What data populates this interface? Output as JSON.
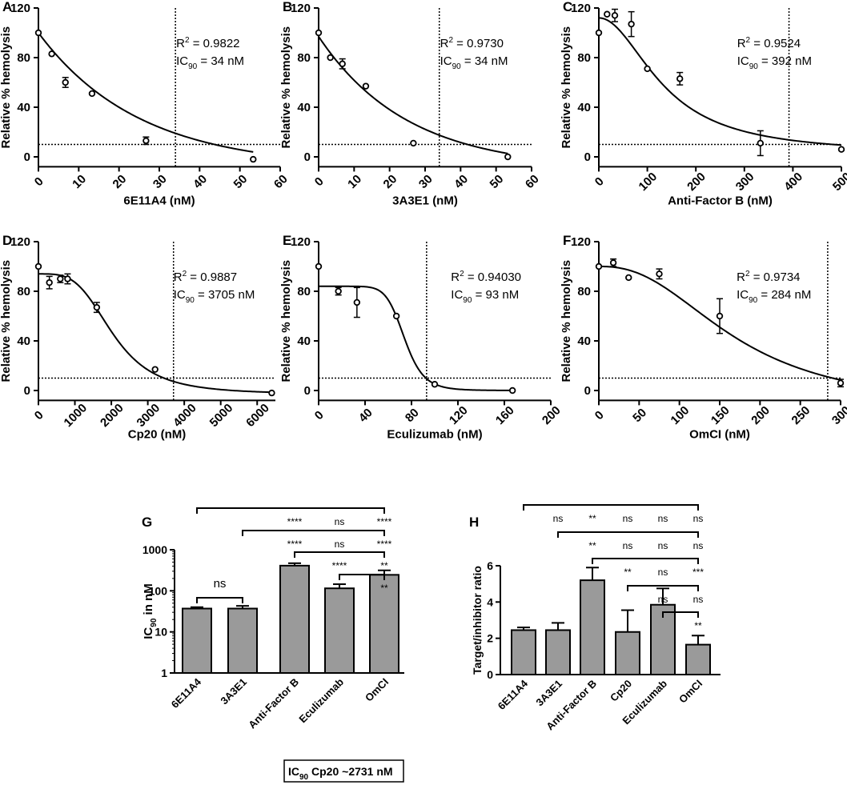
{
  "chart_data": [
    {
      "type": "scatter",
      "panel": "A",
      "title": "",
      "xlabel": "6E11A4 (nM)",
      "ylabel": "Relative % hemolysis",
      "xlim": [
        0,
        60
      ],
      "ylim": [
        -8,
        120
      ],
      "xticks": [
        0,
        10,
        20,
        30,
        40,
        50,
        60
      ],
      "yticks": [
        0,
        40,
        80,
        120
      ],
      "points": [
        {
          "x": 0,
          "y": 100,
          "err": 0
        },
        {
          "x": 3.3,
          "y": 83,
          "err": 0
        },
        {
          "x": 6.7,
          "y": 60,
          "err": 4
        },
        {
          "x": 13.3,
          "y": 51,
          "err": 0
        },
        {
          "x": 26.7,
          "y": 13,
          "err": 3
        },
        {
          "x": 53.3,
          "y": -2,
          "err": 0
        }
      ],
      "curve": {
        "kind": "exp",
        "top": 100,
        "bottom": -9,
        "k": 0.04
      },
      "ic90": 34,
      "ic90_line_y": 10,
      "r2_label": "R",
      "r2_value": "= 0.9822",
      "ic_label": "IC",
      "ic_sub": "90",
      "ic_value": "= 34 nM"
    },
    {
      "type": "scatter",
      "panel": "B",
      "title": "",
      "xlabel": "3A3E1 (nM)",
      "ylabel": "Relative % hemolysis",
      "xlim": [
        0,
        60
      ],
      "ylim": [
        -8,
        120
      ],
      "xticks": [
        0,
        10,
        20,
        30,
        40,
        50,
        60
      ],
      "yticks": [
        0,
        40,
        80,
        120
      ],
      "points": [
        {
          "x": 0,
          "y": 100,
          "err": 0
        },
        {
          "x": 3.3,
          "y": 80,
          "err": 0
        },
        {
          "x": 6.7,
          "y": 75,
          "err": 4
        },
        {
          "x": 13.3,
          "y": 57,
          "err": 0
        },
        {
          "x": 26.7,
          "y": 11,
          "err": 0
        },
        {
          "x": 53.3,
          "y": 0,
          "err": 0
        }
      ],
      "curve": {
        "kind": "exp",
        "top": 97,
        "bottom": -10,
        "k": 0.04
      },
      "ic90": 34,
      "ic90_line_y": 10,
      "r2_label": "R",
      "r2_value": "= 0.9730",
      "ic_label": "IC",
      "ic_sub": "90",
      "ic_value": "= 34 nM"
    },
    {
      "type": "scatter",
      "panel": "C",
      "title": "",
      "xlabel": "Anti-Factor B (nM)",
      "ylabel": "Relative % hemolysis",
      "xlim": [
        0,
        500
      ],
      "ylim": [
        -8,
        120
      ],
      "xticks": [
        0,
        100,
        200,
        300,
        400,
        500
      ],
      "yticks": [
        0,
        40,
        80,
        120
      ],
      "points": [
        {
          "x": 0,
          "y": 100,
          "err": 0
        },
        {
          "x": 17,
          "y": 115,
          "err": 0
        },
        {
          "x": 33,
          "y": 114,
          "err": 5
        },
        {
          "x": 67,
          "y": 107,
          "err": 10
        },
        {
          "x": 100,
          "y": 71,
          "err": 0
        },
        {
          "x": 167,
          "y": 63,
          "err": 5
        },
        {
          "x": 333,
          "y": 11,
          "err": 10
        },
        {
          "x": 500,
          "y": 6,
          "err": 0
        }
      ],
      "curve": {
        "kind": "logistic",
        "top": 112,
        "bottom": 2,
        "ec50": 135,
        "hill": 2.0
      },
      "ic90": 392,
      "ic90_line_y": 10,
      "r2_label": "R",
      "r2_value": "= 0.9524",
      "ic_label": "IC",
      "ic_sub": "90",
      "ic_value": "= 392 nM"
    },
    {
      "type": "scatter",
      "panel": "D",
      "title": "",
      "xlabel": "Cp20 (nM)",
      "ylabel": "Relative % hemolysis",
      "xlim": [
        0,
        6500
      ],
      "ylim": [
        -8,
        120
      ],
      "xticks": [
        0,
        1000,
        2000,
        3000,
        4000,
        5000,
        6000
      ],
      "yticks": [
        0,
        40,
        80,
        120
      ],
      "points": [
        {
          "x": 0,
          "y": 100,
          "err": 0
        },
        {
          "x": 300,
          "y": 87,
          "err": 5
        },
        {
          "x": 600,
          "y": 90,
          "err": 3
        },
        {
          "x": 800,
          "y": 90,
          "err": 4
        },
        {
          "x": 1600,
          "y": 67,
          "err": 4
        },
        {
          "x": 3200,
          "y": 17,
          "err": 0
        },
        {
          "x": 6400,
          "y": -2,
          "err": 0
        }
      ],
      "curve": {
        "kind": "logistic",
        "top": 94,
        "bottom": -3,
        "ec50": 2050,
        "hill": 3.6
      },
      "ic90": 3705,
      "ic90_line_y": 10,
      "r2_label": "R",
      "r2_value": "= 0.9887",
      "ic_label": "IC",
      "ic_sub": "90",
      "ic_value": "= 3705 nM"
    },
    {
      "type": "scatter",
      "panel": "E",
      "title": "",
      "xlabel": "Eculizumab (nM)",
      "ylabel": "Relative % hemolysis",
      "xlim": [
        0,
        200
      ],
      "ylim": [
        -8,
        120
      ],
      "xticks": [
        0,
        40,
        80,
        120,
        160,
        200
      ],
      "yticks": [
        0,
        40,
        80,
        120
      ],
      "points": [
        {
          "x": 0,
          "y": 100,
          "err": 0
        },
        {
          "x": 17,
          "y": 80,
          "err": 3
        },
        {
          "x": 33,
          "y": 71,
          "err": 12
        },
        {
          "x": 67,
          "y": 60,
          "err": 0
        },
        {
          "x": 100,
          "y": 5,
          "err": 0
        },
        {
          "x": 167,
          "y": 0,
          "err": 0
        }
      ],
      "curve": {
        "kind": "logistic",
        "top": 84,
        "bottom": 0,
        "ec50": 74,
        "hill": 9
      },
      "ic90": 93,
      "ic90_line_y": 10,
      "r2_label": "R",
      "r2_value": "= 0.94030",
      "ic_label": "IC",
      "ic_sub": "90",
      "ic_value": "= 93 nM"
    },
    {
      "type": "scatter",
      "panel": "F",
      "title": "",
      "xlabel": "OmCI (nM)",
      "ylabel": "Relative % hemolysis",
      "xlim": [
        0,
        300
      ],
      "ylim": [
        -8,
        120
      ],
      "xticks": [
        0,
        50,
        100,
        150,
        200,
        250,
        300
      ],
      "yticks": [
        0,
        40,
        80,
        120
      ],
      "points": [
        {
          "x": 0,
          "y": 100,
          "err": 0
        },
        {
          "x": 18,
          "y": 103,
          "err": 3
        },
        {
          "x": 37,
          "y": 91,
          "err": 0
        },
        {
          "x": 75,
          "y": 94,
          "err": 4
        },
        {
          "x": 150,
          "y": 60,
          "err": 14
        },
        {
          "x": 300,
          "y": 6,
          "err": 3
        }
      ],
      "curve": {
        "kind": "logistic",
        "top": 100,
        "bottom": -15,
        "ec50": 170,
        "hill": 2.4
      },
      "ic90": 284,
      "ic90_line_y": 10,
      "r2_label": "R",
      "r2_value": "= 0.9734",
      "ic_label": "IC",
      "ic_sub": "90",
      "ic_value": "= 284 nM"
    },
    {
      "type": "bar",
      "panel": "G",
      "title": "",
      "xlabel": "",
      "ylabel_main": "IC",
      "ylabel_sub": "90",
      "ylabel_rest": " in nM",
      "yscale": "log",
      "ylim": [
        1,
        1000
      ],
      "yticks": [
        1,
        10,
        100,
        1000
      ],
      "categories": [
        "6E11A4",
        "3A3E1",
        "Anti-Factor B",
        "Eculizumab",
        "OmCI"
      ],
      "values": [
        37,
        37,
        410,
        115,
        245
      ],
      "errors": [
        3,
        6,
        60,
        30,
        70
      ],
      "ns_label": "ns",
      "comparisons": [
        {
          "from": 0,
          "to": 1,
          "label": "ns",
          "row": "local"
        },
        {
          "from": 0,
          "to": 4,
          "labels": [
            {
              "cat": 2,
              "text": "****"
            },
            {
              "cat": 3,
              "text": "ns"
            },
            {
              "cat": 4,
              "text": "****"
            }
          ],
          "row": 0
        },
        {
          "from": 1,
          "to": 4,
          "labels": [
            {
              "cat": 2,
              "text": "****"
            },
            {
              "cat": 3,
              "text": "ns"
            },
            {
              "cat": 4,
              "text": "****"
            }
          ],
          "row": 1
        },
        {
          "from": 2,
          "to": 4,
          "labels": [
            {
              "cat": 3,
              "text": "****"
            },
            {
              "cat": 4,
              "text": "**"
            }
          ],
          "row": 2
        },
        {
          "from": 3,
          "to": 4,
          "labels": [
            {
              "cat": 4,
              "text": "**"
            }
          ],
          "row": 3
        }
      ],
      "footnote_main": "IC",
      "footnote_sub": "90",
      "footnote_rest": " Cp20 ~2731 nM"
    },
    {
      "type": "bar",
      "panel": "H",
      "title": "",
      "xlabel": "",
      "ylabel": "Target/inhibitor ratio",
      "yscale": "linear",
      "ylim": [
        0,
        6
      ],
      "yticks": [
        0,
        2,
        4,
        6
      ],
      "categories": [
        "6E11A4",
        "3A3E1",
        "Anti-Factor B",
        "Cp20",
        "Eculizumab",
        "OmCI"
      ],
      "values": [
        2.45,
        2.45,
        5.2,
        2.35,
        3.85,
        1.65
      ],
      "errors": [
        0.15,
        0.4,
        0.7,
        1.2,
        0.9,
        0.5
      ],
      "comparisons": [
        {
          "from": 0,
          "to": 5,
          "labels": [
            {
              "cat": 1,
              "text": "ns"
            },
            {
              "cat": 2,
              "text": "**"
            },
            {
              "cat": 3,
              "text": "ns"
            },
            {
              "cat": 4,
              "text": "ns"
            },
            {
              "cat": 5,
              "text": "ns"
            }
          ],
          "row": 0
        },
        {
          "from": 1,
          "to": 5,
          "labels": [
            {
              "cat": 2,
              "text": "**"
            },
            {
              "cat": 3,
              "text": "ns"
            },
            {
              "cat": 4,
              "text": "ns"
            },
            {
              "cat": 5,
              "text": "ns"
            }
          ],
          "row": 1
        },
        {
          "from": 2,
          "to": 5,
          "labels": [
            {
              "cat": 3,
              "text": "**"
            },
            {
              "cat": 4,
              "text": "ns"
            },
            {
              "cat": 5,
              "text": "***"
            }
          ],
          "row": 2
        },
        {
          "from": 3,
          "to": 5,
          "labels": [
            {
              "cat": 4,
              "text": "ns"
            },
            {
              "cat": 5,
              "text": "ns"
            }
          ],
          "row": 3
        },
        {
          "from": 4,
          "to": 5,
          "labels": [
            {
              "cat": 5,
              "text": "**"
            }
          ],
          "row": 4
        }
      ]
    }
  ]
}
